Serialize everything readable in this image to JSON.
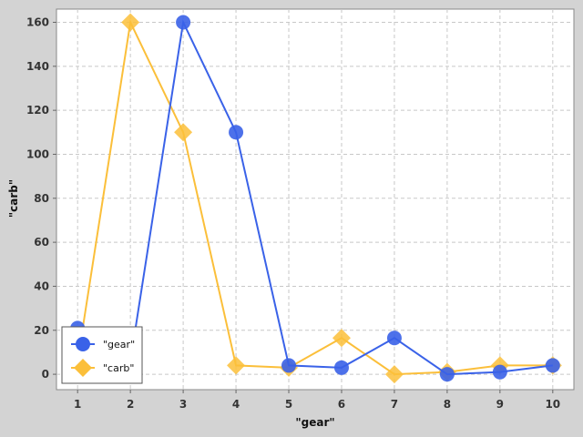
{
  "chart_data": {
    "type": "line",
    "title": "",
    "xlabel": "\"gear\"",
    "ylabel": "\"carb\"",
    "x": [
      1,
      2,
      3,
      4,
      5,
      6,
      7,
      8,
      9,
      10
    ],
    "xlim": [
      0.6,
      10.4
    ],
    "ylim": [
      -7,
      166
    ],
    "xticks": [
      1,
      2,
      3,
      4,
      5,
      6,
      7,
      8,
      9,
      10
    ],
    "yticks": [
      0,
      20,
      40,
      60,
      80,
      100,
      120,
      140,
      160
    ],
    "grid": true,
    "legend_position": "bottom-left",
    "series": [
      {
        "name": "\"gear\"",
        "marker": "circle",
        "color": "#3a62e8",
        "values": [
          21,
          6,
          160,
          110,
          4,
          3,
          16.5,
          0,
          1,
          4
        ]
      },
      {
        "name": "\"carb\"",
        "marker": "diamond",
        "color": "#fbbf3a",
        "values": [
          6,
          160,
          110,
          4,
          3,
          16.5,
          0,
          1,
          4,
          4
        ]
      }
    ]
  },
  "colors": {
    "background": "#d3d3d3",
    "plot_background": "#ffffff",
    "grid": "#c8c8c8"
  }
}
